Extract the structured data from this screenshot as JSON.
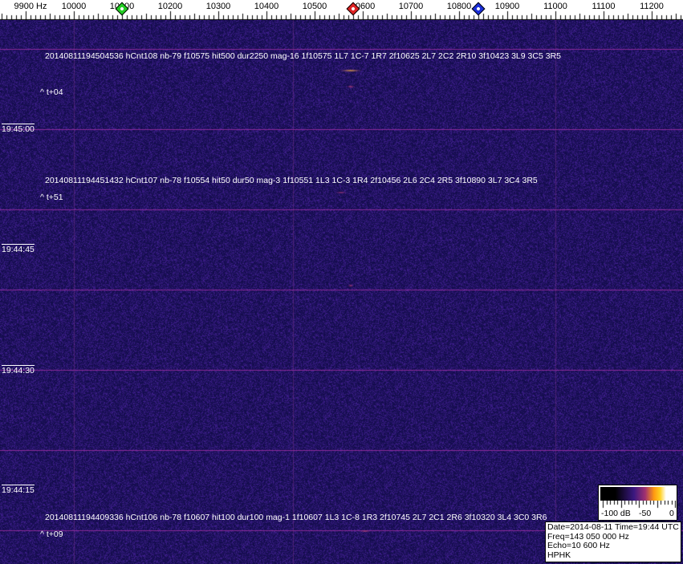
{
  "axis": {
    "unit_label": "9900 Hz",
    "freq_labels": [
      "10000",
      "10100",
      "10200",
      "10300",
      "10400",
      "10500",
      "10600",
      "10700",
      "10800",
      "10900",
      "11000",
      "11100",
      "11200"
    ],
    "markers": [
      {
        "name": "green-marker",
        "freq": 10100,
        "color": "#22cc22"
      },
      {
        "name": "red-marker",
        "freq": 10580,
        "color": "#dd2222"
      },
      {
        "name": "blue-marker",
        "freq": 10840,
        "color": "#1a2ed8"
      }
    ]
  },
  "time_labels": [
    "19:45:00",
    "19:44:45",
    "19:44:30",
    "19:44:15"
  ],
  "detections": [
    {
      "text": "20140811194504536 hCnt108 nb-79 f10575 hit500 dur2250 mag-16 1f10575 1L7 1C-7 1R7 2f10625 2L7 2C2 2R10 3f10423 3L9 3C5 3R5",
      "offset": "^ t+04"
    },
    {
      "text": "20140811194451432 hCnt107 nb-78 f10554 hit50 dur50 mag-3 1f10551 1L3 1C-3 1R4 2f10456 2L6 2C4 2R5 3f10890 3L7 3C4 3R5",
      "offset": "^ t+51"
    },
    {
      "text": "20140811194409336 hCnt106 nb-78 f10607 hit100 dur100 mag-1 1f10607 1L3 1C-8 1R3 2f10745 2L7 2C1 2R6 3f10320 3L4 3C0 3R6",
      "offset": "^ t+09"
    }
  ],
  "scale": {
    "min_label": "-100 dB",
    "mid_label": "-50",
    "max_label": "0"
  },
  "info": {
    "date_time": "Date=2014-08-11 Time=19:44 UTC",
    "freq": "Freq=143 050 000 Hz",
    "echo": "Echo=10 600 Hz",
    "station": "HPHK"
  },
  "colors": {
    "background": "#1e1670",
    "grid_line": "#8a2a9a",
    "signal": "#ffa020"
  }
}
